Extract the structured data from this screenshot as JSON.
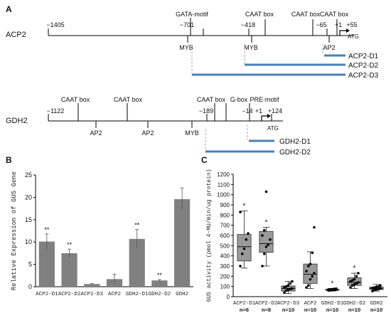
{
  "panel_a": {
    "label": "A",
    "acp2": {
      "name": "ACP2",
      "positions": [
        "−1405",
        "−701",
        "−418",
        "−65",
        "+1",
        "+55"
      ],
      "above_elements": [
        "GATA-motif",
        "CAAT box",
        "CAAT box",
        "CAAT box"
      ],
      "below_elements": [
        "MYB",
        "MYB",
        "AP2"
      ],
      "atg": "ATG",
      "deletions": [
        "ACP2-D1",
        "ACP2-D2",
        "ACP2-D3"
      ]
    },
    "gdh2": {
      "name": "GDH2",
      "positions": [
        "−1122",
        "−189",
        "−14",
        "+1",
        "+124"
      ],
      "above_elements": [
        "CAAT box",
        "CAAT box",
        "CAAT box",
        "G-box",
        "PRE-motif"
      ],
      "below_elements": [
        "AP2",
        "AP2",
        "MYB"
      ],
      "atg": "ATG",
      "deletions": [
        "GDH2-D1",
        "GDH2-D2"
      ]
    }
  },
  "panel_b": {
    "label": "B"
  },
  "panel_c": {
    "label": "C"
  },
  "chart_data": [
    {
      "type": "bar",
      "ylabel": "Relative Expression of GUS Gene",
      "ylim": [
        0,
        25
      ],
      "yticks": [
        "0",
        "5",
        "10",
        "15",
        "20",
        "25"
      ],
      "categories": [
        "ACP2-D1",
        "ACP2-D2",
        "ACP2-D3",
        "ACP2",
        "GDH2-D1",
        "GDH2-D2",
        "GDH2"
      ],
      "values": [
        10.1,
        7.5,
        0.6,
        1.7,
        10.7,
        1.4,
        19.6
      ],
      "errors": [
        1.7,
        0.9,
        0.1,
        1.1,
        2.1,
        0.2,
        2.5
      ],
      "annotations": [
        "**",
        "**",
        "",
        "",
        "**",
        "**",
        ""
      ],
      "bar_color": "#808080"
    },
    {
      "type": "box",
      "ylabel": "GUS activity (pmol 4-MU/min/ug protein)",
      "ylim": [
        0,
        1200
      ],
      "yticks": [
        "0",
        "100",
        "200",
        "300",
        "400",
        "500",
        "600",
        "700",
        "800",
        "900",
        "1000",
        "1100",
        "1200"
      ],
      "categories": [
        "ACP2-D1",
        "ACP2-D2",
        "ACP2-D3",
        "ACP2",
        "GDH2-D1",
        "GDH2-D2",
        "GDH2"
      ],
      "n_labels": [
        "n=6",
        "n=8",
        "n=10",
        "n=10",
        "n=10",
        "n=10",
        "n=10"
      ],
      "annotations": [
        "*",
        "*",
        "",
        "",
        "*",
        "*",
        ""
      ],
      "boxes": [
        {
          "min": 280,
          "q1": 350,
          "median": 490,
          "q3": 610,
          "max": 840
        },
        {
          "min": 300,
          "q1": 435,
          "median": 520,
          "q3": 640,
          "max": 680
        },
        {
          "min": 30,
          "q1": 55,
          "median": 80,
          "q3": 105,
          "max": 150
        },
        {
          "min": 80,
          "q1": 130,
          "median": 220,
          "q3": 320,
          "max": 440
        },
        {
          "min": 55,
          "q1": 63,
          "median": 68,
          "q3": 72,
          "max": 80
        },
        {
          "min": 80,
          "q1": 110,
          "median": 140,
          "q3": 185,
          "max": 230
        },
        {
          "min": 55,
          "q1": 70,
          "median": 80,
          "q3": 95,
          "max": 120
        }
      ],
      "points": [
        [
          300,
          420,
          470,
          560,
          620,
          830
        ],
        [
          300,
          420,
          490,
          510,
          560,
          600,
          650,
          1030
        ],
        [
          40,
          60,
          70,
          75,
          80,
          90,
          100,
          110,
          130,
          150
        ],
        [
          90,
          110,
          170,
          200,
          230,
          250,
          300,
          320,
          430,
          680
        ],
        [
          60,
          62,
          64,
          66,
          68,
          70,
          72,
          74,
          76,
          78
        ],
        [
          90,
          110,
          120,
          130,
          140,
          150,
          160,
          170,
          200,
          230
        ],
        [
          55,
          65,
          70,
          75,
          80,
          85,
          90,
          95,
          100,
          110
        ]
      ],
      "box_color": "#999999"
    }
  ]
}
